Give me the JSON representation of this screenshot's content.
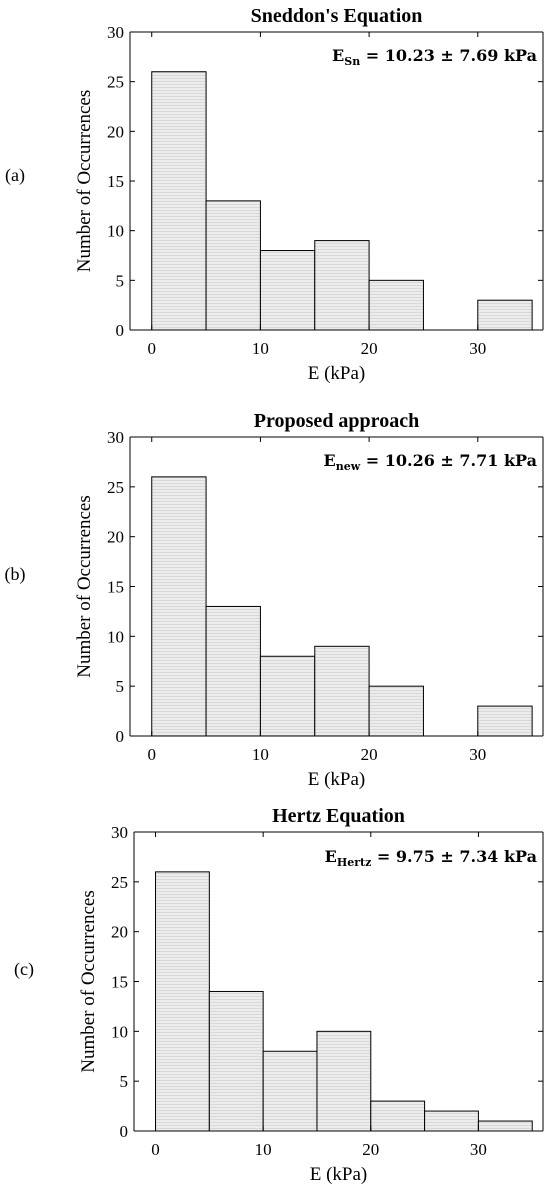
{
  "chart_data": [
    {
      "type": "bar",
      "panel_label": "(a)",
      "title": "Sneddon's Equation",
      "xlabel": "E (kPa)",
      "ylabel": "Number of Occurrences",
      "bin_edges": [
        0,
        5,
        10,
        15,
        20,
        25,
        30,
        35
      ],
      "values": [
        26,
        13,
        8,
        9,
        5,
        0,
        3
      ],
      "xlim": [
        -2,
        36
      ],
      "ylim": [
        0,
        30
      ],
      "xticks": [
        0,
        10,
        20,
        30
      ],
      "yticks": [
        0,
        5,
        10,
        15,
        20,
        25,
        30
      ],
      "annotation": {
        "main": "E",
        "sub": "Sn",
        "rest": " = 10.23 ± 7.69 kPa"
      },
      "bar_fill": "#ececec",
      "bar_stroke": "#000000"
    },
    {
      "type": "bar",
      "panel_label": "(b)",
      "title": "Proposed approach",
      "xlabel": "E (kPa)",
      "ylabel": "Number of Occurrences",
      "bin_edges": [
        0,
        5,
        10,
        15,
        20,
        25,
        30,
        35
      ],
      "values": [
        26,
        13,
        8,
        9,
        5,
        0,
        3
      ],
      "xlim": [
        -2,
        36
      ],
      "ylim": [
        0,
        30
      ],
      "xticks": [
        0,
        10,
        20,
        30
      ],
      "yticks": [
        0,
        5,
        10,
        15,
        20,
        25,
        30
      ],
      "annotation": {
        "main": "E",
        "sub": "new",
        "rest": " = 10.26 ± 7.71 kPa"
      },
      "bar_fill": "#ececec",
      "bar_stroke": "#000000"
    },
    {
      "type": "bar",
      "panel_label": "(c)",
      "title": "Hertz Equation",
      "xlabel": "E (kPa)",
      "ylabel": "Number of Occurrences",
      "bin_edges": [
        0,
        5,
        10,
        15,
        20,
        25,
        30,
        35
      ],
      "values": [
        26,
        14,
        8,
        10,
        3,
        2,
        1
      ],
      "xlim": [
        -2,
        36
      ],
      "ylim": [
        0,
        30
      ],
      "xticks": [
        0,
        10,
        20,
        30
      ],
      "yticks": [
        0,
        5,
        10,
        15,
        20,
        25,
        30
      ],
      "annotation": {
        "main": "E",
        "sub": "Hertz",
        "rest": " = 9.75 ± 7.34 kPa"
      },
      "bar_fill": "#ececec",
      "bar_stroke": "#000000"
    }
  ]
}
